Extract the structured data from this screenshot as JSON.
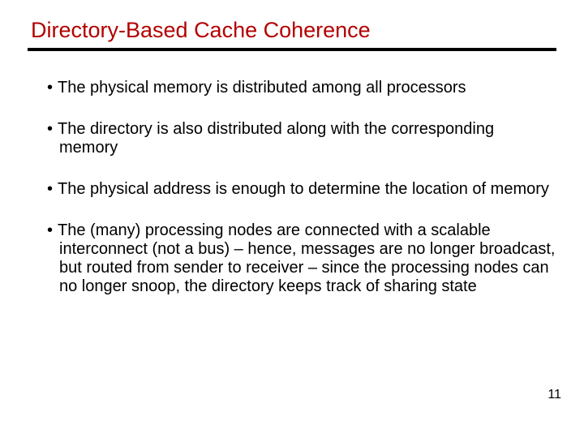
{
  "title": "Directory-Based Cache Coherence",
  "title_color": "#b30000",
  "divider_color": "#000000",
  "text_color": "#000000",
  "background_color": "#ffffff",
  "title_fontsize": 27,
  "body_fontsize": 20,
  "page_number_fontsize": 16,
  "bullets": [
    "The physical memory is distributed among all processors",
    "The directory is also distributed along with the corresponding memory",
    "The physical address is enough to determine the location of memory",
    "The (many) processing nodes are connected with a scalable interconnect (not a bus) – hence, messages are no longer broadcast, but routed from sender to receiver – since the processing nodes can no longer snoop, the directory keeps track of sharing state"
  ],
  "page_number": "11"
}
